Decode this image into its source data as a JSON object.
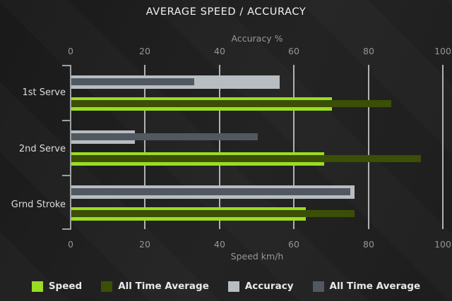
{
  "title": "AVERAGE SPEED / ACCURACY",
  "chart_data": {
    "type": "bar",
    "orientation": "horizontal",
    "title": "AVERAGE SPEED / ACCURACY",
    "categories": [
      "1st Serve",
      "2nd Serve",
      "Grnd Stroke"
    ],
    "axes": {
      "top": {
        "label": "Accuracy %",
        "ticks": [
          0,
          20,
          40,
          60,
          80,
          100
        ],
        "range": [
          0,
          100
        ]
      },
      "bottom": {
        "label": "Speed km/h",
        "ticks": [
          0,
          20,
          40,
          60,
          80,
          100
        ],
        "range": [
          0,
          100
        ]
      }
    },
    "grid": true,
    "legend_position": "bottom",
    "series": [
      {
        "name": "Speed",
        "axis": "bottom",
        "color": "#9bdd20",
        "values": [
          70,
          68,
          63
        ]
      },
      {
        "name": "All Time Average",
        "axis": "bottom",
        "color": "#3b4f07",
        "values": [
          86,
          94,
          76
        ]
      },
      {
        "name": "Accuracy",
        "axis": "top",
        "color": "#b7bdc1",
        "values": [
          56,
          17,
          76
        ]
      },
      {
        "name": "All Time Average",
        "axis": "top",
        "color": "#51585f",
        "values": [
          33,
          50,
          75
        ]
      }
    ]
  },
  "colors": {
    "background": "#1d1d1d",
    "gridline": "#c2c6c9",
    "axis": "#9da2a5",
    "title_text": "#f2f2f2",
    "axis_text": "#989898",
    "category_text": "#dcdcdc",
    "legend_text": "#e9e9e9"
  }
}
